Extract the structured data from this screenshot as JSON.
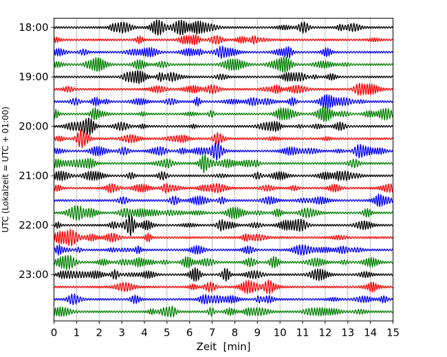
{
  "chart_data": {
    "type": "line",
    "subtype": "helicorder",
    "xlabel": "Zeit  [min]",
    "ylabel": "UTC (Lokalzeit = UTC + 01:00)",
    "xlim": [
      0,
      15
    ],
    "x_ticks": [
      "0",
      "1",
      "2",
      "3",
      "4",
      "5",
      "6",
      "7",
      "8",
      "9",
      "10",
      "11",
      "12",
      "13",
      "14",
      "15"
    ],
    "y_tick_labels": [
      "18:00",
      "19:00",
      "20:00",
      "21:00",
      "22:00",
      "23:00"
    ],
    "rows_per_hour": 4,
    "minutes_per_row": 15,
    "trace_count": 24,
    "trace_colors": [
      "#000000",
      "#ff0000",
      "#0000ff",
      "#008000"
    ],
    "grid": "vertical dotted lines at every minute"
  }
}
